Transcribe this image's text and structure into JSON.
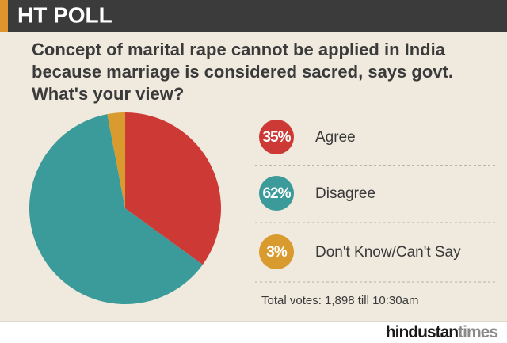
{
  "header": "HT POLL",
  "chart_data": {
    "type": "pie",
    "title": [
      "Concept of marital rape cannot be applied in India",
      "because marriage is considered sacred, says govt.",
      "What's your view?"
    ],
    "categories": [
      "Agree",
      "Disagree",
      "Don't Know/Can't Say"
    ],
    "values": [
      35,
      62,
      3
    ],
    "value_labels": [
      "35%",
      "62%",
      "3%"
    ],
    "colors": [
      "#cd3a36",
      "#3a9b9a",
      "#d99a2e"
    ],
    "note": "Total votes: 1,898 till 10:30am"
  },
  "brand": [
    "hindustan",
    "times"
  ]
}
